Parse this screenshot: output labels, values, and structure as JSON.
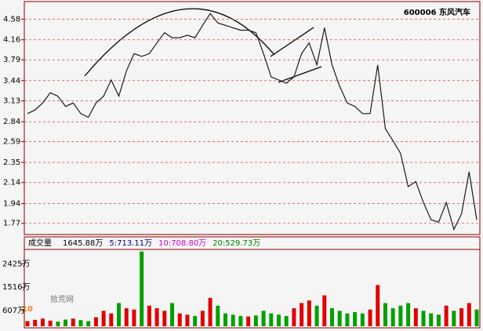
{
  "chart_data": [
    {
      "type": "line",
      "title": "600006 东风汽车",
      "color": "#1a1a1a",
      "log_scale": true,
      "grid": true,
      "ylim": [
        1.68,
        4.97
      ],
      "yticks": [
        4.58,
        4.16,
        3.79,
        3.44,
        3.13,
        2.84,
        2.59,
        2.35,
        2.14,
        1.94,
        1.77
      ],
      "values": [
        2.95,
        3.0,
        3.1,
        3.25,
        3.2,
        3.05,
        3.1,
        2.95,
        2.9,
        3.1,
        3.2,
        3.45,
        3.2,
        3.6,
        3.9,
        3.85,
        3.9,
        4.1,
        4.3,
        4.2,
        4.2,
        4.25,
        4.2,
        4.45,
        4.7,
        4.5,
        4.45,
        4.4,
        4.35,
        4.35,
        4.3,
        3.9,
        3.5,
        3.45,
        3.4,
        3.5,
        3.9,
        4.1,
        3.7,
        4.4,
        3.7,
        3.35,
        3.1,
        3.05,
        2.95,
        2.95,
        3.7,
        2.75,
        2.6,
        2.45,
        2.1,
        2.15,
        1.95,
        1.8,
        1.78,
        1.95,
        1.72,
        1.85,
        2.25,
        1.8
      ]
    },
    {
      "type": "bar",
      "title": "成交量",
      "up_color": "#e00000",
      "down_color": "#00a000",
      "indicators": [
        {
          "text": "1645.88万",
          "color": "#000000"
        },
        {
          "text": "5:713.11万",
          "color": "#000080"
        },
        {
          "text": "10:708.80万",
          "color": "#d000d0"
        },
        {
          "text": "20:529.73万",
          "color": "#008000"
        }
      ],
      "ylim": [
        0,
        2920
      ],
      "yticks": [
        {
          "value": 2425,
          "label": "2425万"
        },
        {
          "value": 1516,
          "label": "1516万"
        },
        {
          "value": 607,
          "label": "607万"
        }
      ],
      "values": [
        200,
        250,
        300,
        220,
        180,
        260,
        300,
        240,
        200,
        350,
        600,
        500,
        900,
        700,
        650,
        2900,
        800,
        700,
        600,
        900,
        500,
        450,
        400,
        600,
        1100,
        800,
        500,
        450,
        400,
        380,
        420,
        600,
        500,
        450,
        400,
        700,
        900,
        1000,
        800,
        1200,
        700,
        600,
        500,
        550,
        500,
        650,
        1600,
        900,
        700,
        800,
        900,
        700,
        600,
        500,
        450,
        800,
        600,
        700,
        900,
        650
      ]
    }
  ],
  "watermark": {
    "number": "10",
    "site": "拾荒网"
  }
}
